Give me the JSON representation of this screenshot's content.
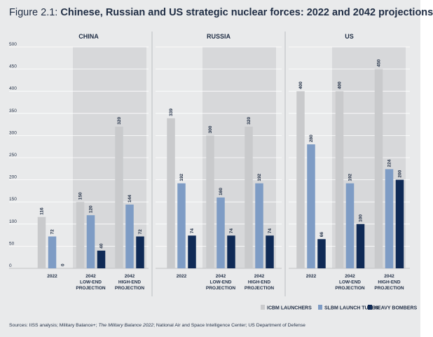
{
  "title": {
    "figure_label": "Figure 2.1:",
    "text": "Chinese, Russian and US strategic nuclear forces: 2022 and 2042 projections"
  },
  "sources": {
    "prefix": "Sources: IISS analysis; Military Balance+; ",
    "italic": "The Military Balance 2022",
    "suffix": "; National Air and Space Intelligence Center; US Department of Defense"
  },
  "colors": {
    "background": "#e9eaeb",
    "projection_shade": "#d7d8da",
    "icbm": "#c9cacc",
    "slbm": "#7e9cc5",
    "bombers": "#0f2a56",
    "text": "#1f2d44"
  },
  "chart_data": {
    "type": "bar",
    "ylim": [
      0,
      500
    ],
    "yticks": [
      "0",
      "50",
      "100",
      "150",
      "200",
      "250",
      "300",
      "350",
      "400",
      "450",
      "500"
    ],
    "grid": true,
    "legend_position": "bottom-right",
    "series": [
      {
        "name": "ICBM LAUNCHERS",
        "color": "#c9cacc"
      },
      {
        "name": "SLBM LAUNCH TUBES",
        "color": "#7e9cc5"
      },
      {
        "name": "HEAVY BOMBERS",
        "color": "#0f2a56"
      }
    ],
    "panels": [
      {
        "name": "CHINA",
        "groups": [
          {
            "label": [
              "2022"
            ],
            "values": [
              116,
              72,
              0
            ],
            "projection": false
          },
          {
            "label": [
              "2042",
              "LOW-END",
              "PROJECTION"
            ],
            "values": [
              150,
              120,
              40
            ],
            "projection": true
          },
          {
            "label": [
              "2042",
              "HIGH-END",
              "PROJECTION"
            ],
            "values": [
              320,
              144,
              72
            ],
            "projection": true
          }
        ]
      },
      {
        "name": "RUSSIA",
        "groups": [
          {
            "label": [
              "2022"
            ],
            "values": [
              339,
              192,
              74
            ],
            "projection": false
          },
          {
            "label": [
              "2042",
              "LOW-END",
              "PROJECTION"
            ],
            "values": [
              300,
              160,
              74
            ],
            "projection": true
          },
          {
            "label": [
              "2042",
              "HIGH-END",
              "PROJECTION"
            ],
            "values": [
              320,
              192,
              74
            ],
            "projection": true
          }
        ]
      },
      {
        "name": "US",
        "groups": [
          {
            "label": [
              "2022"
            ],
            "values": [
              400,
              280,
              66
            ],
            "projection": false
          },
          {
            "label": [
              "2042",
              "LOW-END",
              "PROJECTION"
            ],
            "values": [
              400,
              192,
              100
            ],
            "projection": true
          },
          {
            "label": [
              "2042",
              "HIGH-END",
              "PROJECTION"
            ],
            "values": [
              450,
              224,
              200
            ],
            "projection": true
          }
        ]
      }
    ]
  }
}
